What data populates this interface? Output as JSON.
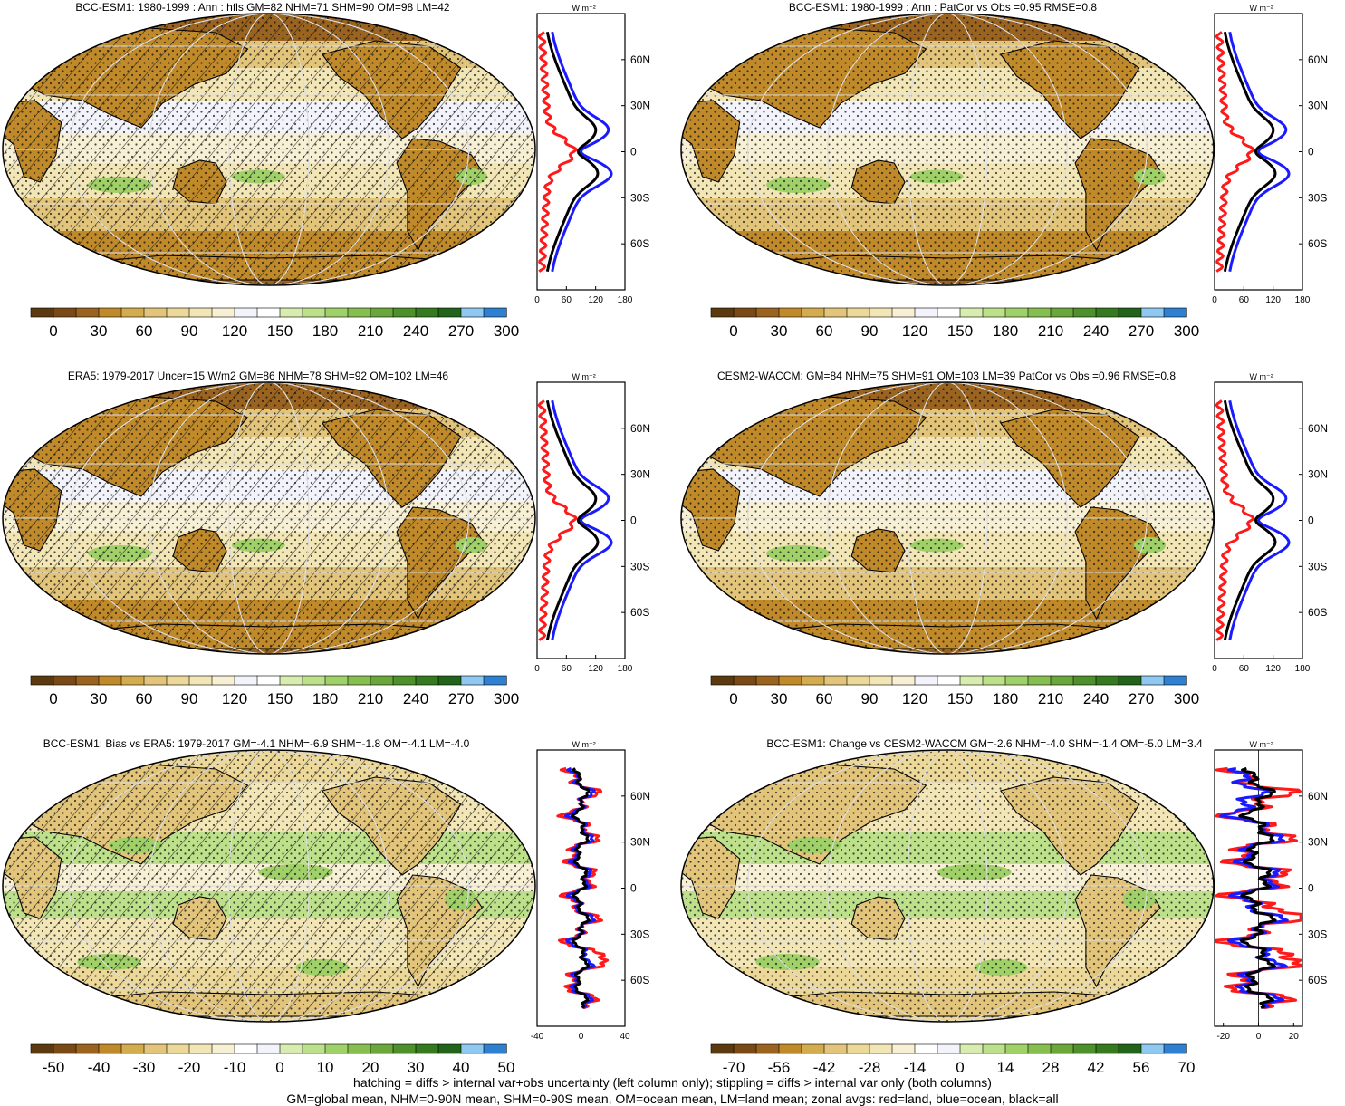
{
  "chart_data": [
    {
      "type": "heatmap",
      "title": "BCC-ESM1: 1980-1999 : Ann : hfls GM=82 NHM=71 SHM=90 OM=98 LM=42",
      "palette": "hfls",
      "hatching": true,
      "colorbar": {
        "ticks": [
          "0",
          "30",
          "60",
          "90",
          "120",
          "150",
          "180",
          "210",
          "240",
          "270",
          "300"
        ],
        "range": [
          -15,
          315
        ]
      },
      "zonal": {
        "unit_label": "W m⁻²",
        "xlim": [
          0,
          180
        ],
        "xticks": [
          "0",
          "60",
          "120",
          "180"
        ],
        "lat_ticks": [
          "60N",
          "30N",
          "0",
          "30S",
          "60S"
        ],
        "series": [
          {
            "name": "land",
            "color": "#ff1a1a"
          },
          {
            "name": "ocean",
            "color": "#1a1aff"
          },
          {
            "name": "all",
            "color": "#000000"
          }
        ],
        "profile": "obs"
      }
    },
    {
      "type": "heatmap",
      "title": "BCC-ESM1: 1980-1999 : Ann : PatCor vs Obs =0.95 RMSE=0.8",
      "palette": "hfls",
      "hatching": false,
      "colorbar": {
        "ticks": [
          "0",
          "30",
          "60",
          "90",
          "120",
          "150",
          "180",
          "210",
          "240",
          "270",
          "300"
        ],
        "range": [
          -15,
          315
        ]
      },
      "zonal": {
        "unit_label": "W m⁻²",
        "xlim": [
          0,
          180
        ],
        "xticks": [
          "0",
          "60",
          "120",
          "180"
        ],
        "lat_ticks": [
          "60N",
          "30N",
          "0",
          "30S",
          "60S"
        ],
        "series": [
          {
            "name": "land",
            "color": "#ff1a1a"
          },
          {
            "name": "ocean",
            "color": "#1a1aff"
          },
          {
            "name": "all",
            "color": "#000000"
          }
        ],
        "profile": "obs"
      }
    },
    {
      "type": "heatmap",
      "title": "ERA5: 1979-2017 Uncer=15 W/m2 GM=86 NHM=78 SHM=92 OM=102 LM=46",
      "palette": "hfls",
      "hatching": true,
      "colorbar": {
        "ticks": [
          "0",
          "30",
          "60",
          "90",
          "120",
          "150",
          "180",
          "210",
          "240",
          "270",
          "300"
        ],
        "range": [
          -15,
          315
        ]
      },
      "zonal": {
        "unit_label": "W m⁻²",
        "xlim": [
          0,
          180
        ],
        "xticks": [
          "0",
          "60",
          "120",
          "180"
        ],
        "lat_ticks": [
          "60N",
          "30N",
          "0",
          "30S",
          "60S"
        ],
        "series": [
          {
            "name": "land",
            "color": "#ff1a1a"
          },
          {
            "name": "ocean",
            "color": "#1a1aff"
          },
          {
            "name": "all",
            "color": "#000000"
          }
        ],
        "profile": "obs"
      }
    },
    {
      "type": "heatmap",
      "title": "CESM2-WACCM: GM=84 NHM=75 SHM=91 OM=103 LM=39 PatCor vs Obs =0.96 RMSE=0.8",
      "palette": "hfls",
      "hatching": false,
      "colorbar": {
        "ticks": [
          "0",
          "30",
          "60",
          "90",
          "120",
          "150",
          "180",
          "210",
          "240",
          "270",
          "300"
        ],
        "range": [
          -15,
          315
        ]
      },
      "zonal": {
        "unit_label": "W m⁻²",
        "xlim": [
          0,
          180
        ],
        "xticks": [
          "0",
          "60",
          "120",
          "180"
        ],
        "lat_ticks": [
          "60N",
          "30N",
          "0",
          "30S",
          "60S"
        ],
        "series": [
          {
            "name": "land",
            "color": "#ff1a1a"
          },
          {
            "name": "ocean",
            "color": "#1a1aff"
          },
          {
            "name": "all",
            "color": "#000000"
          }
        ],
        "profile": "obs"
      }
    },
    {
      "type": "heatmap",
      "title": "BCC-ESM1: Bias vs ERA5: 1979-2017 GM=-4.1 NHM=-6.9 SHM=-1.8 OM=-4.1 LM=-4.0",
      "palette": "diff",
      "hatching": true,
      "colorbar": {
        "ticks": [
          "-50",
          "-40",
          "-30",
          "-20",
          "-10",
          "0",
          "10",
          "20",
          "30",
          "40",
          "50"
        ],
        "range": [
          -55,
          55
        ]
      },
      "zonal": {
        "unit_label": "W m⁻²",
        "xlim": [
          -40,
          40
        ],
        "xticks": [
          "-40",
          "0",
          "40"
        ],
        "lat_ticks": [
          "60N",
          "30N",
          "0",
          "30S",
          "60S"
        ],
        "series": [
          {
            "name": "land",
            "color": "#ff1a1a"
          },
          {
            "name": "ocean",
            "color": "#1a1aff"
          },
          {
            "name": "all",
            "color": "#000000"
          }
        ],
        "profile": "bias"
      }
    },
    {
      "type": "heatmap",
      "title": "BCC-ESM1: Change vs CESM2-WACCM GM=-2.6 NHM=-4.0 SHM=-1.4 OM=-5.0 LM=3.4",
      "palette": "diff",
      "hatching": false,
      "colorbar": {
        "ticks": [
          "-70",
          "-56",
          "-42",
          "-28",
          "-14",
          "0",
          "14",
          "28",
          "42",
          "56",
          "70"
        ],
        "range": [
          -77,
          77
        ]
      },
      "zonal": {
        "unit_label": "W m⁻²",
        "xlim": [
          -25,
          25
        ],
        "xticks": [
          "-20",
          "0",
          "20"
        ],
        "lat_ticks": [
          "60N",
          "30N",
          "0",
          "30S",
          "60S"
        ],
        "series": [
          {
            "name": "land",
            "color": "#ff1a1a"
          },
          {
            "name": "ocean",
            "color": "#1a1aff"
          },
          {
            "name": "all",
            "color": "#000000"
          }
        ],
        "profile": "change"
      }
    }
  ],
  "footnote": {
    "line1": "hatching = diffs > internal var+obs uncertainty (left column only); stippling = diffs > internal var only (both columns)",
    "line2": "GM=global mean, NHM=0-90N mean, SHM=0-90S mean, OM=ocean mean, LM=land mean; zonal avgs: red=land, blue=ocean, black=all"
  },
  "colors": {
    "hfls": [
      "#5c3a10",
      "#7a4a16",
      "#9a6420",
      "#c08a2a",
      "#d4ac50",
      "#e2c57a",
      "#ecd898",
      "#f3e6b6",
      "#f8f0d4",
      "#f3f3fb",
      "#ffffff",
      "#d8ecb0",
      "#bde08a",
      "#a0d068",
      "#86bf50",
      "#6aa83c",
      "#4e902c",
      "#367a20",
      "#22641a",
      "#8fc8f0",
      "#2f80d0"
    ],
    "diff": [
      "#5c3a10",
      "#7a4a16",
      "#9a6420",
      "#c08a2a",
      "#d4ac50",
      "#e2c57a",
      "#ecd898",
      "#f3e6b6",
      "#f8f0d4",
      "#ffffff",
      "#f3f3fb",
      "#d8ecb0",
      "#bde08a",
      "#a0d068",
      "#86bf50",
      "#6aa83c",
      "#4e902c",
      "#367a20",
      "#22641a",
      "#8fc8f0",
      "#2f80d0"
    ]
  }
}
